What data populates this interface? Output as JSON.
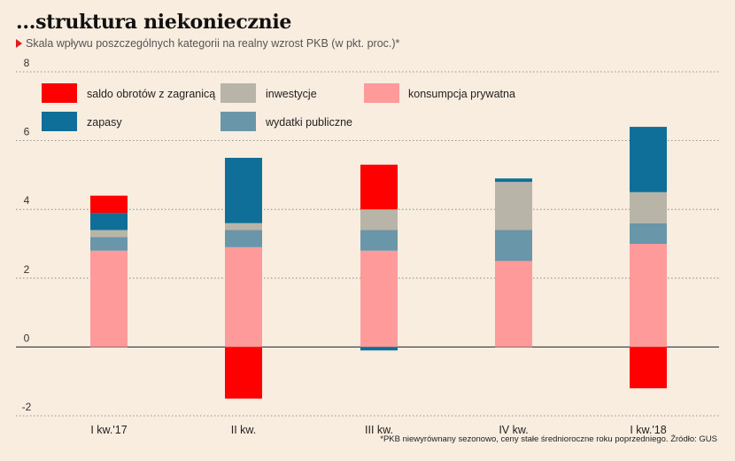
{
  "header": {
    "title": "...struktura niekoniecznie",
    "subtitle": "Skala wpływu poszczególnych kategorii na realny wzrost PKB (w pkt. proc.)*"
  },
  "footnote": "*PKB niewyrównany sezonowo, ceny stałe średnioroczne roku poprzedniego. Źródło: GUS",
  "colors": {
    "saldo": "#ff0000",
    "inwestycje": "#b8b5a8",
    "konsumpcja": "#ff9a9a",
    "zapasy": "#0f6f99",
    "wydatki": "#6996a8"
  },
  "chart_data": {
    "type": "bar",
    "stacked": true,
    "categories": [
      "I kw.'17",
      "II kw.",
      "III kw.",
      "IV kw.",
      "I kw.'18"
    ],
    "ylim": [
      -2,
      8
    ],
    "yticks": [
      -2,
      0,
      2,
      4,
      6,
      8
    ],
    "grid": true,
    "legend_position": "top",
    "series": [
      {
        "name": "konsumpcja prywatna",
        "key": "konsumpcja",
        "values": [
          2.8,
          2.9,
          2.8,
          2.5,
          3.0
        ]
      },
      {
        "name": "wydatki publiczne",
        "key": "wydatki",
        "values": [
          0.4,
          0.5,
          0.6,
          0.9,
          0.6
        ]
      },
      {
        "name": "inwestycje",
        "key": "inwestycje",
        "values": [
          0.2,
          0.2,
          0.6,
          1.4,
          0.9
        ]
      },
      {
        "name": "zapasy",
        "key": "zapasy",
        "values": [
          0.5,
          1.9,
          -0.1,
          0.1,
          1.9
        ]
      },
      {
        "name": "saldo obrotów z zagranicą",
        "key": "saldo",
        "values": [
          0.5,
          -1.5,
          1.3,
          0.0,
          -1.2
        ]
      }
    ],
    "legend": [
      {
        "label": "saldo obrotów z zagranicą",
        "key": "saldo"
      },
      {
        "label": "inwestycje",
        "key": "inwestycje"
      },
      {
        "label": "konsumpcja prywatna",
        "key": "konsumpcja"
      },
      {
        "label": "zapasy",
        "key": "zapasy"
      },
      {
        "label": "wydatki publiczne",
        "key": "wydatki"
      }
    ]
  }
}
